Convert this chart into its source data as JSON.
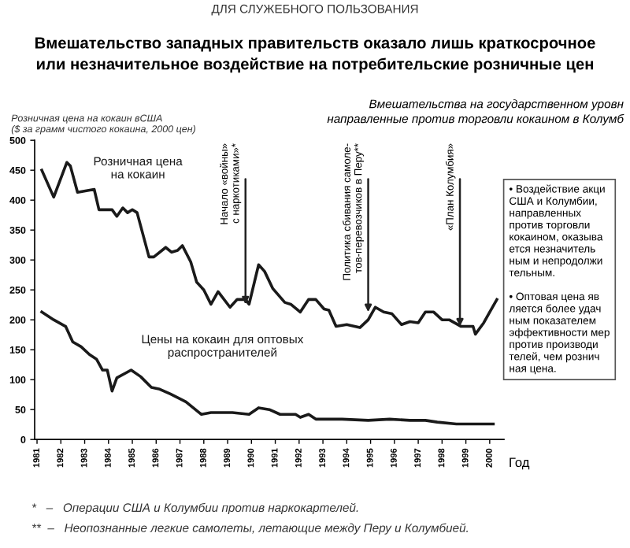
{
  "chart_data": {
    "type": "line",
    "title": "Вмешательство западных правительств оказало лишь краткосрочное\nили незначительное воздействие на потребительские розничные цен",
    "subtitle": "Вмешательства на государственном уровн\nнаправленные против торговли кокаином в Колумб",
    "ylabel": "Розничная цена на кокаин вСША\n($ за грамм чистого кокаина, 2000 цен)",
    "xlabel": "Год",
    "series": [
      {
        "name": "Розничная цена\nна кокаин",
        "color": "#1a1a1a",
        "x": [
          1981.2,
          1981.7,
          1982.25,
          1982.4,
          1982.7,
          1983.4,
          1983.6,
          1984.15,
          1984.35,
          1984.6,
          1984.8,
          1985.0,
          1985.2,
          1985.7,
          1985.9,
          1986.4,
          1986.65,
          1986.9,
          1987.1,
          1987.45,
          1987.7,
          1988.0,
          1988.3,
          1988.6,
          1989.1,
          1989.4,
          1989.75,
          1989.9,
          1990.3,
          1990.55,
          1990.9,
          1991.4,
          1991.65,
          1992.05,
          1992.4,
          1992.7,
          1993.05,
          1993.25,
          1993.55,
          1994.0,
          1994.55,
          1994.9,
          1995.2,
          1995.55,
          1995.9,
          1996.3,
          1996.65,
          1997.0,
          1997.3,
          1997.65,
          1998.0,
          1998.3,
          1998.8,
          1999.3,
          1999.4,
          1999.75,
          2000.0,
          2000.3
        ],
        "values": [
          450,
          405,
          463,
          457,
          413,
          418,
          384,
          384,
          373,
          387,
          379,
          384,
          379,
          305,
          305,
          321,
          313,
          316,
          324,
          297,
          263,
          250,
          226,
          247,
          221,
          234,
          234,
          226,
          292,
          281,
          252,
          229,
          226,
          213,
          234,
          234,
          218,
          216,
          189,
          192,
          187,
          200,
          221,
          213,
          210,
          192,
          197,
          195,
          213,
          213,
          200,
          200,
          189,
          189,
          176,
          195,
          213,
          234
        ]
      },
      {
        "name": "Цены на кокаин для оптовых\nраспространителей",
        "color": "#1a1a1a",
        "x": [
          1981.2,
          1981.7,
          1982.2,
          1982.5,
          1982.85,
          1983.2,
          1983.5,
          1983.75,
          1983.95,
          1984.15,
          1984.35,
          1984.95,
          1985.35,
          1985.8,
          1986.15,
          1986.6,
          1987.25,
          1987.9,
          1988.3,
          1989.2,
          1989.9,
          1990.3,
          1990.75,
          1991.2,
          1991.85,
          1992.05,
          1992.4,
          1992.7,
          1993.8,
          1994.9,
          1995.8,
          1996.65,
          1997.3,
          1997.8,
          1998.6,
          2000.15
        ],
        "values": [
          213,
          200,
          189,
          163,
          155,
          142,
          134,
          116,
          116,
          81,
          103,
          116,
          105,
          87,
          84,
          76,
          63,
          42,
          45,
          45,
          42,
          53,
          50,
          42,
          42,
          37,
          42,
          34,
          34,
          32,
          34,
          32,
          32,
          29,
          26,
          26
        ]
      }
    ],
    "xlim": [
      1980.9,
      2000.6
    ],
    "xticks": [
      1981,
      1982,
      1983,
      1984,
      1985,
      1986,
      1987,
      1988,
      1989,
      1990,
      1991,
      1992,
      1993,
      1994,
      1995,
      1996,
      1997,
      1998,
      1999,
      2000
    ],
    "ylim": [
      0,
      500
    ],
    "yticks": [
      0,
      50,
      100,
      150,
      200,
      250,
      300,
      350,
      400,
      450,
      500
    ],
    "grid": false,
    "legend": false,
    "marker": "none",
    "line_style": "solid",
    "annotations": [
      "ДЛЯ СЛУЖЕБНОГО ПОЛЬЗОВАНИЯ",
      "• Воздействие акци\nСША и Колумбии,\nнаправленных\nпротив торговли\nкокаином, оказыва\nется незначитель\nным и непродолжи\nтельным.\n\n• Оптовая цена яв\nляется более удач\nным показателем\nэффективности мер\nпротив производи\nтелей, чем рознич\nная цена.",
      "*   –   Операции США и Колумбии против наркокартелей.",
      "**  –   Неопознанные легкие самолеты, летающие между Перу и Колумбией.",
      {
        "text": "Начало «войны»\nс наркотиками»*",
        "x": 1989.75,
        "y": 226
      },
      {
        "text": "Политика сбивания самоле-\nтов-перевозчиков в Перу**",
        "x": 1994.9,
        "y": 213
      },
      {
        "text": "«План Колумбия»",
        "x": 1998.75,
        "y": 189
      }
    ]
  }
}
